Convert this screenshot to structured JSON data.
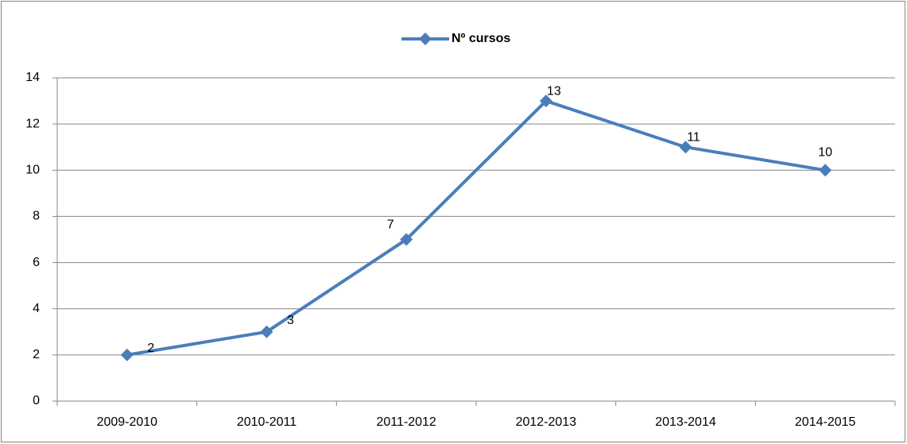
{
  "chart_data": {
    "type": "line",
    "categories": [
      "2009-2010",
      "2010-2011",
      "2011-2012",
      "2012-2013",
      "2013-2014",
      "2014-2015"
    ],
    "series": [
      {
        "name": "Nº cursos",
        "color": "#4a7ebb",
        "values": [
          2,
          3,
          7,
          13,
          11,
          10
        ]
      }
    ],
    "ylim": [
      0,
      14
    ],
    "yticks": [
      0,
      2,
      4,
      6,
      8,
      10,
      12,
      14
    ],
    "grid": true,
    "legend": "top",
    "data_labels": true
  }
}
